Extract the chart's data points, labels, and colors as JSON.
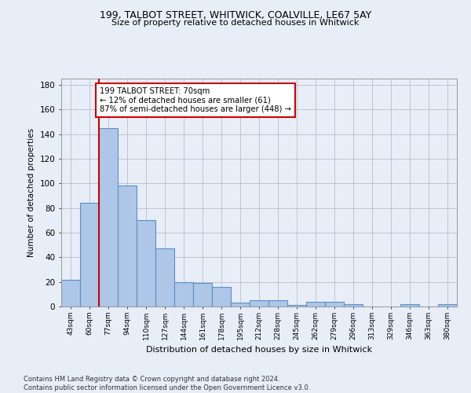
{
  "title1": "199, TALBOT STREET, WHITWICK, COALVILLE, LE67 5AY",
  "title2": "Size of property relative to detached houses in Whitwick",
  "xlabel": "Distribution of detached houses by size in Whitwick",
  "ylabel": "Number of detached properties",
  "bar_values": [
    22,
    84,
    145,
    98,
    70,
    47,
    20,
    19,
    16,
    3,
    5,
    5,
    1,
    4,
    4,
    2,
    0,
    0,
    2,
    0,
    2
  ],
  "bar_labels": [
    "43sqm",
    "60sqm",
    "77sqm",
    "94sqm",
    "110sqm",
    "127sqm",
    "144sqm",
    "161sqm",
    "178sqm",
    "195sqm",
    "212sqm",
    "228sqm",
    "245sqm",
    "262sqm",
    "279sqm",
    "296sqm",
    "313sqm",
    "329sqm",
    "346sqm",
    "363sqm",
    "380sqm"
  ],
  "bar_color": "#aec6e8",
  "bar_edge_color": "#5b8fc9",
  "vline_x": 1.5,
  "vline_color": "#cc0000",
  "annotation_line1": "199 TALBOT STREET: 70sqm",
  "annotation_line2": "← 12% of detached houses are smaller (61)",
  "annotation_line3": "87% of semi-detached houses are larger (448) →",
  "annotation_box_color": "#ffffff",
  "annotation_box_edge": "#cc0000",
  "background_color": "#e8eef8",
  "grid_color": "#bbbbcc",
  "footer": "Contains HM Land Registry data © Crown copyright and database right 2024.\nContains public sector information licensed under the Open Government Licence v3.0.",
  "ylim": [
    0,
    185
  ],
  "yticks": [
    0,
    20,
    40,
    60,
    80,
    100,
    120,
    140,
    160,
    180
  ]
}
